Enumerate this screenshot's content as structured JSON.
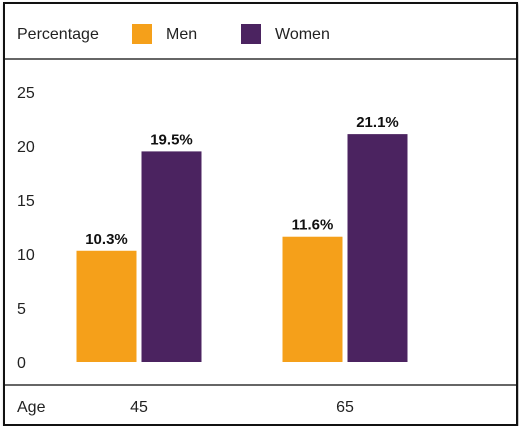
{
  "chart_data": {
    "type": "bar",
    "ylabel": "Percentage",
    "xlabel": "Age",
    "categories": [
      "45",
      "65"
    ],
    "series": [
      {
        "name": "Men",
        "color": "#F5A01A",
        "values": [
          10.3,
          11.6
        ],
        "labels": [
          "10.3%",
          "11.6%"
        ]
      },
      {
        "name": "Women",
        "color": "#4B2360",
        "values": [
          19.5,
          21.1
        ],
        "labels": [
          "19.5%",
          "21.1%"
        ]
      }
    ],
    "ylim": [
      0,
      25
    ],
    "yticks": [
      0,
      5,
      10,
      15,
      20,
      25
    ],
    "grid": false,
    "legend": "top"
  }
}
